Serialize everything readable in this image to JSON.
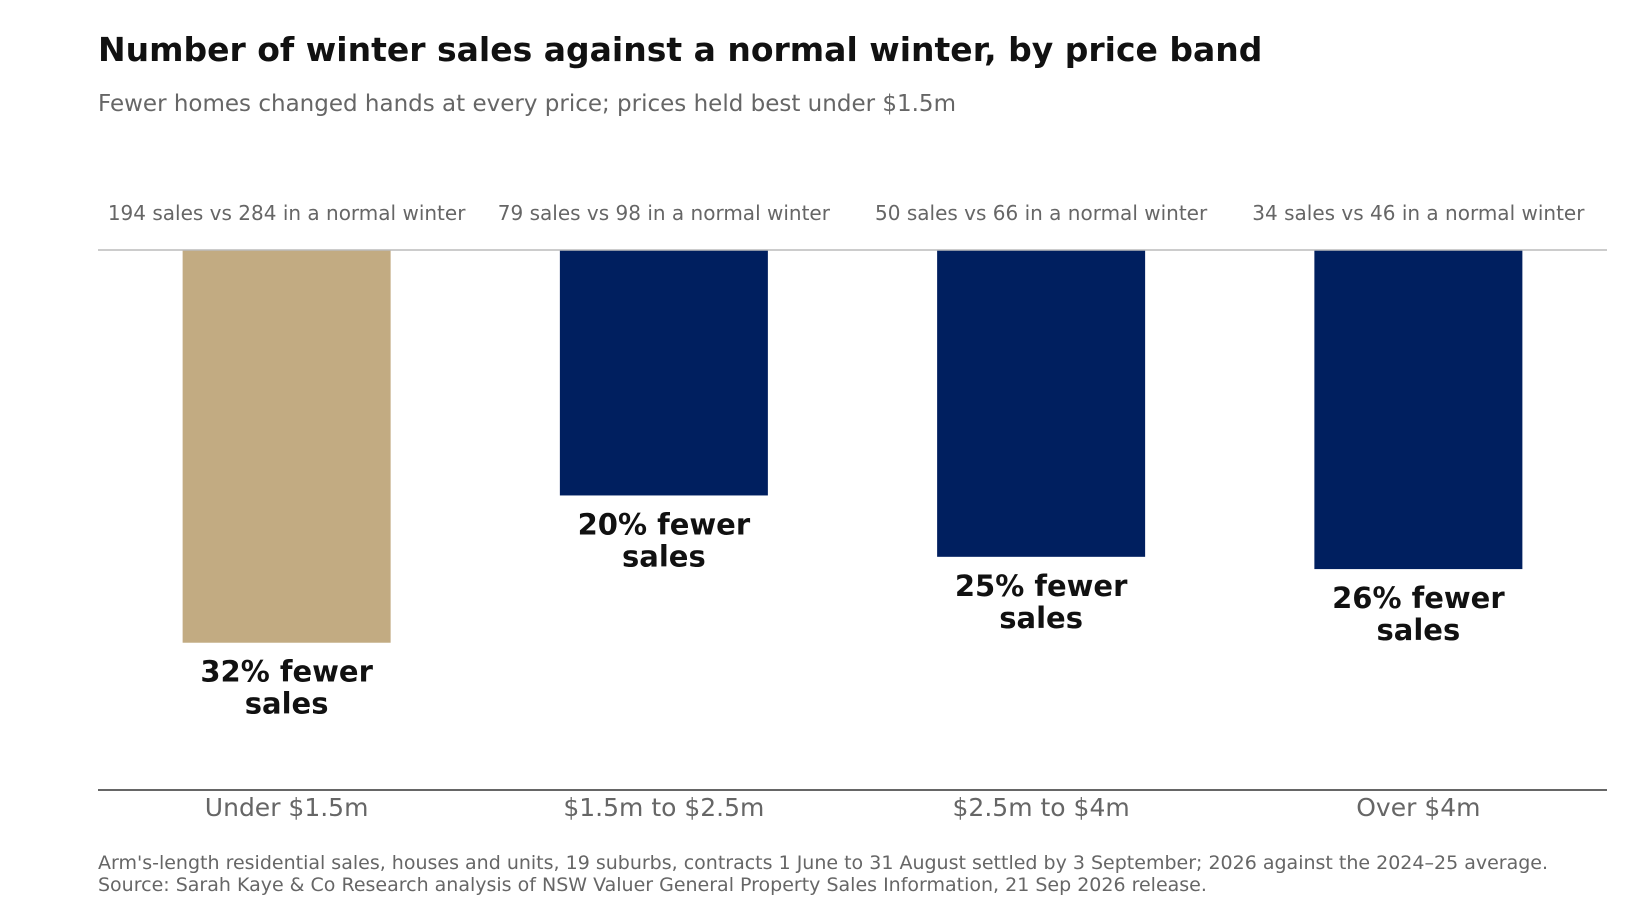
{
  "title": "Number of winter sales against a normal winter, by price band",
  "subtitle": "Fewer homes changed hands at every price; prices held best under $1.5m",
  "colors": {
    "highlight": "#c2ab82",
    "base": "#001f5f",
    "reference_line": "#bbbbbb",
    "axis_line": "#333333",
    "muted_text": "#666666",
    "label_text": "#111111"
  },
  "chart_data": {
    "type": "bar",
    "orientation": "downward",
    "categories": [
      "Under $1.5m",
      "$1.5m to $2.5m",
      "$2.5m to $4m",
      "Over $4m"
    ],
    "values": [
      -32,
      -20,
      -25,
      -26
    ],
    "value_unit": "% change in number of sales",
    "ylim": [
      -44,
      0
    ],
    "sales": [
      194,
      79,
      50,
      34
    ],
    "normal_winter_sales": [
      284,
      98,
      66,
      46
    ],
    "highlight_index": 0,
    "top_labels": [
      "194 sales vs 284 in a normal winter",
      "79 sales vs 98 in a normal winter",
      "50 sales vs 66 in a normal winter",
      "34 sales vs 46 in a normal winter"
    ],
    "bar_labels": [
      [
        "32% fewer",
        "sales"
      ],
      [
        "20% fewer",
        "sales"
      ],
      [
        "25% fewer",
        "sales"
      ],
      [
        "26% fewer",
        "sales"
      ]
    ],
    "grid": false,
    "legend": "none"
  },
  "footnote": {
    "line1": "Arm's-length residential sales, houses and units, 19 suburbs, contracts 1 June to 31 August settled by 3 September; 2026 against the 2024–25 average.",
    "line2": "Source: Sarah Kaye & Co Research analysis of NSW Valuer General Property Sales Information, 21 Sep 2026 release."
  }
}
